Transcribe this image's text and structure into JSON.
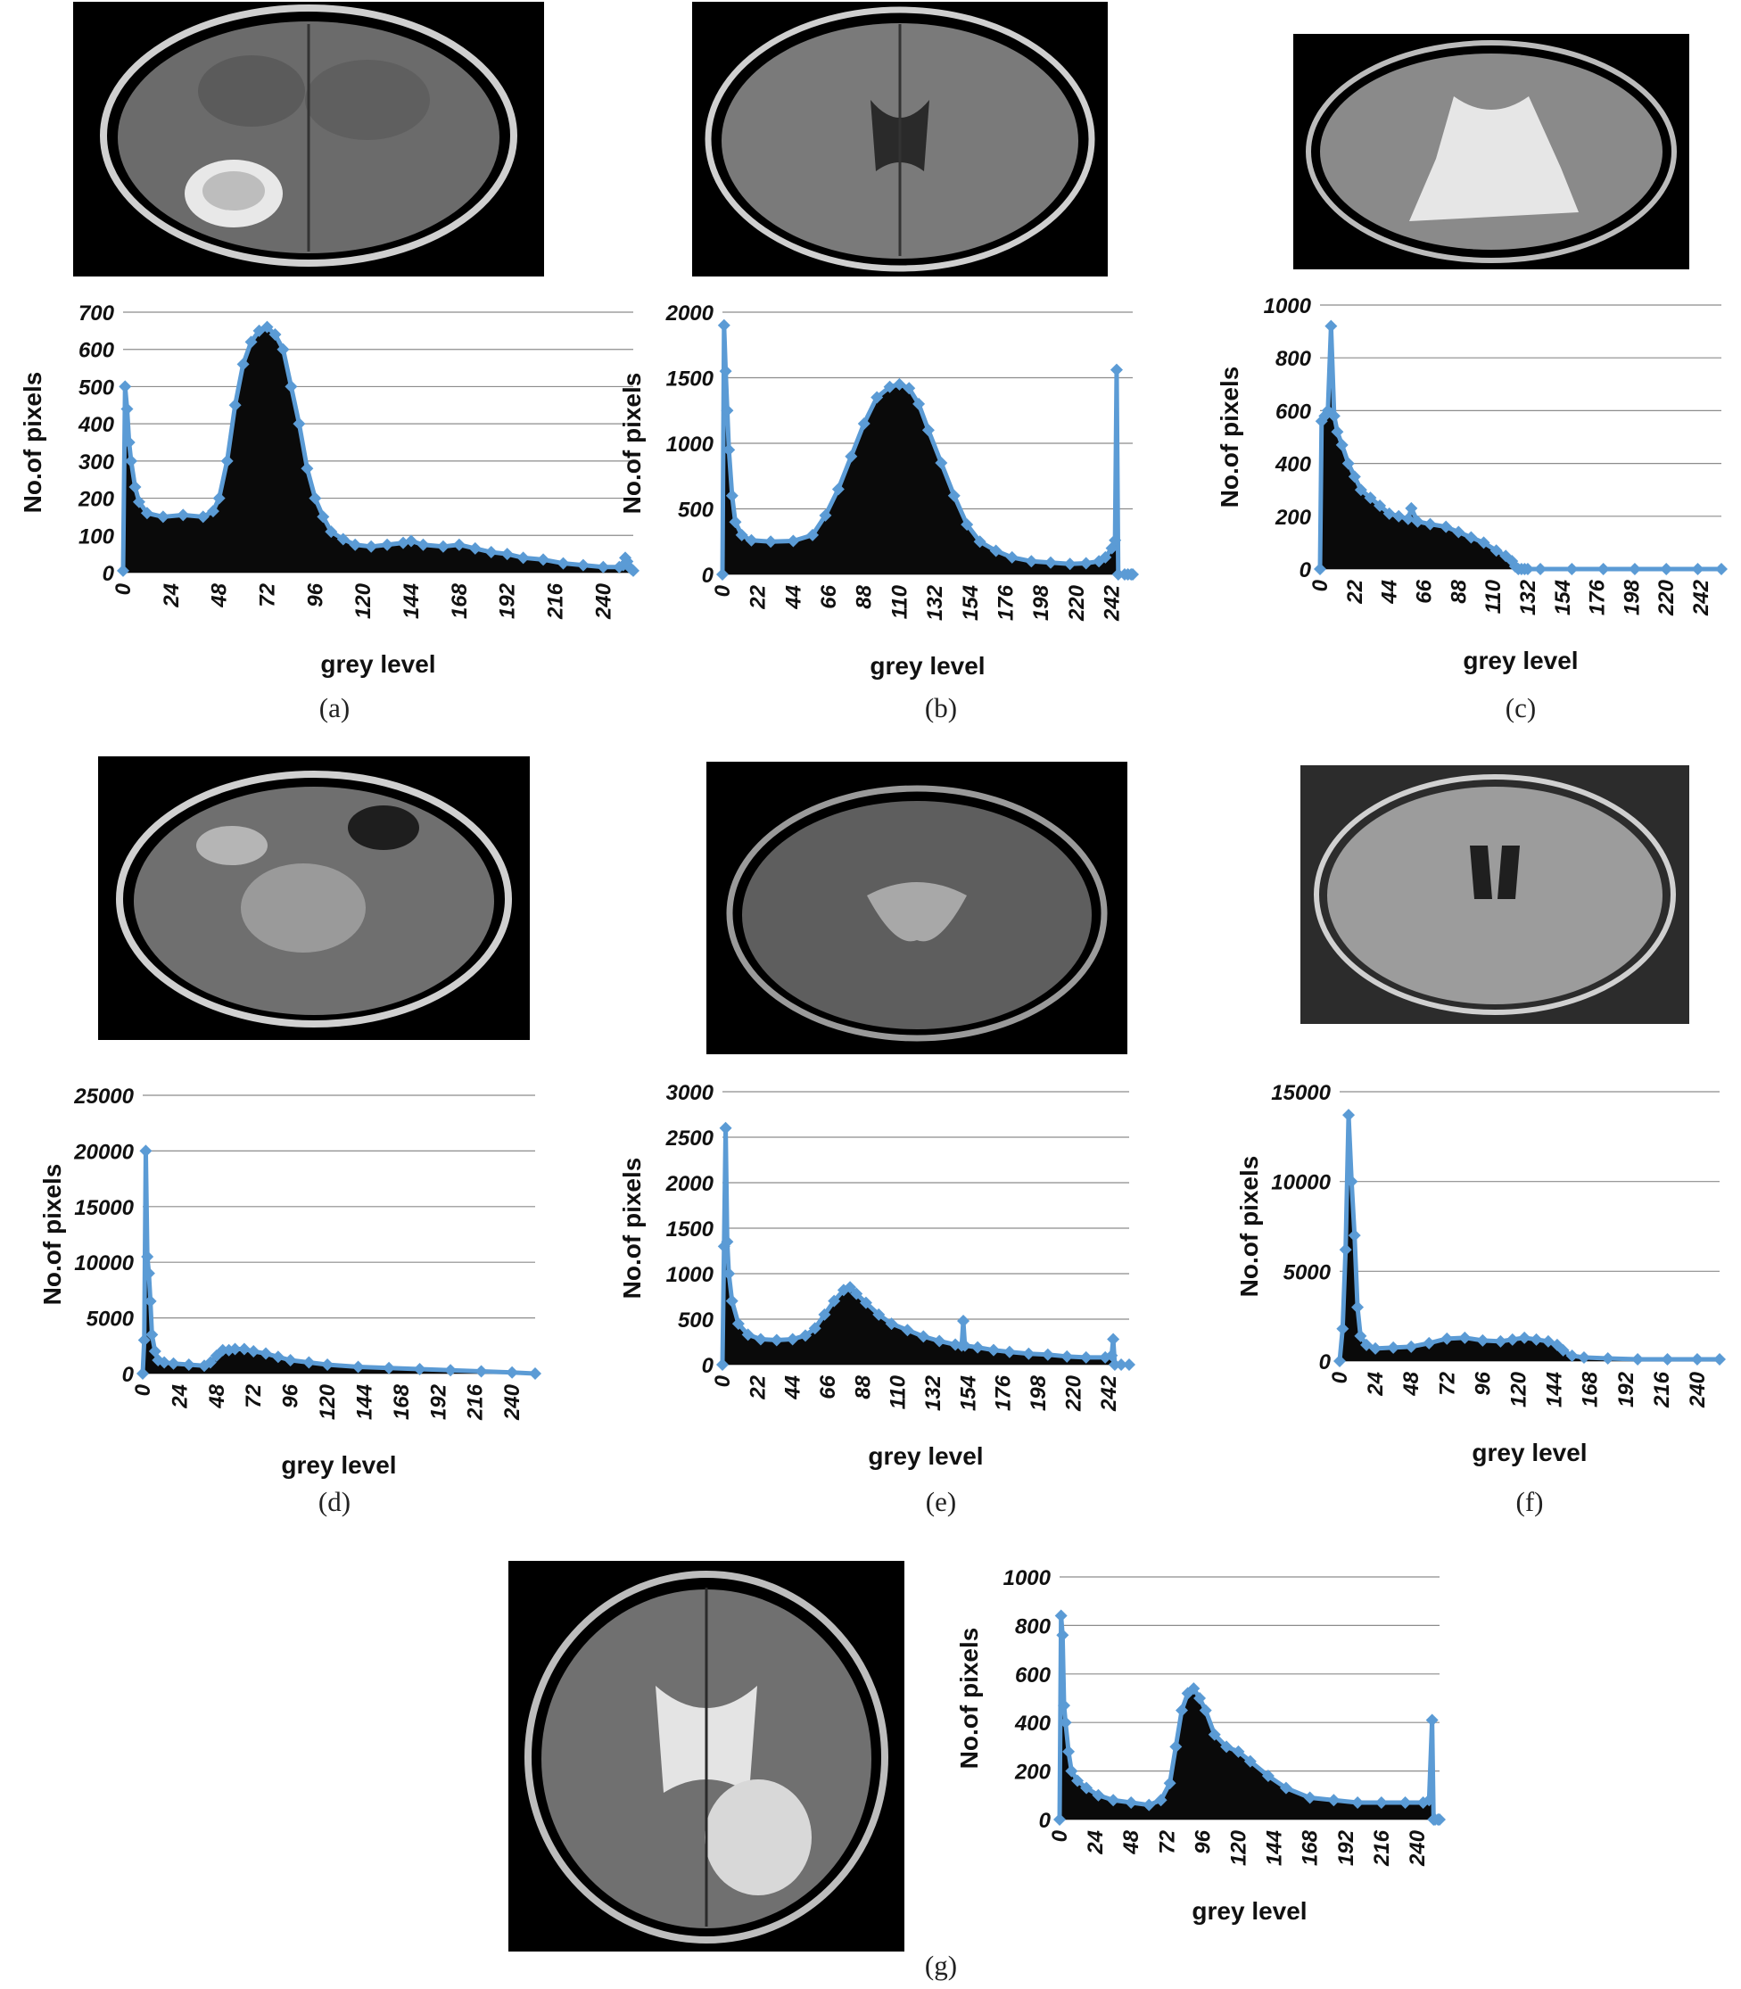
{
  "marker_color": "#5b9bd5",
  "chart_data": [
    {
      "id": "a",
      "caption": "(a)",
      "type": "area",
      "title": "",
      "xlabel": "grey level",
      "ylabel": "No.of pixels",
      "ylim": [
        0,
        700
      ],
      "yticks": [
        0,
        100,
        200,
        300,
        400,
        500,
        600,
        700
      ],
      "xlim": [
        0,
        255
      ],
      "xticks": [
        0,
        24,
        48,
        72,
        96,
        120,
        144,
        168,
        192,
        216,
        240
      ],
      "grid": true,
      "series_color": "#5b9bd5",
      "x": [
        0,
        1,
        2,
        3,
        4,
        6,
        8,
        12,
        20,
        30,
        40,
        45,
        48,
        52,
        56,
        60,
        64,
        68,
        72,
        76,
        80,
        84,
        88,
        92,
        96,
        100,
        104,
        110,
        116,
        124,
        132,
        140,
        144,
        150,
        160,
        168,
        176,
        184,
        192,
        200,
        210,
        220,
        230,
        240,
        248,
        250,
        251,
        252,
        253,
        254,
        255
      ],
      "values": [
        5,
        500,
        440,
        350,
        300,
        230,
        190,
        160,
        150,
        155,
        150,
        165,
        200,
        300,
        450,
        560,
        620,
        650,
        660,
        640,
        600,
        500,
        400,
        280,
        200,
        150,
        110,
        90,
        75,
        70,
        75,
        80,
        85,
        75,
        70,
        75,
        65,
        55,
        50,
        40,
        35,
        25,
        20,
        15,
        15,
        20,
        40,
        30,
        15,
        10,
        5
      ]
    },
    {
      "id": "b",
      "caption": "(b)",
      "type": "area",
      "title": "",
      "xlabel": "grey level",
      "ylabel": "No.of pixels",
      "ylim": [
        0,
        2000
      ],
      "yticks": [
        0,
        500,
        1000,
        1500,
        2000
      ],
      "xlim": [
        0,
        255
      ],
      "xticks": [
        0,
        22,
        44,
        66,
        88,
        110,
        132,
        154,
        176,
        198,
        220,
        242
      ],
      "grid": true,
      "series_color": "#5b9bd5",
      "x": [
        0,
        1,
        2,
        3,
        4,
        6,
        8,
        12,
        18,
        30,
        44,
        56,
        64,
        72,
        80,
        88,
        96,
        104,
        110,
        116,
        122,
        128,
        136,
        144,
        152,
        160,
        170,
        180,
        192,
        204,
        216,
        226,
        234,
        238,
        242,
        244,
        245,
        246,
        250,
        252,
        254,
        255
      ],
      "values": [
        0,
        1900,
        1550,
        1250,
        950,
        600,
        400,
        300,
        260,
        250,
        255,
        300,
        450,
        650,
        900,
        1150,
        1350,
        1430,
        1450,
        1420,
        1300,
        1100,
        850,
        600,
        380,
        250,
        180,
        130,
        100,
        90,
        80,
        85,
        100,
        130,
        200,
        260,
        1560,
        0,
        0,
        0,
        0,
        0
      ]
    },
    {
      "id": "c",
      "caption": "(c)",
      "type": "area",
      "title": "",
      "xlabel": "grey level",
      "ylabel": "No.of pixels",
      "ylim": [
        0,
        1000
      ],
      "yticks": [
        0,
        200,
        400,
        600,
        800,
        1000
      ],
      "xlim": [
        0,
        255
      ],
      "xticks": [
        0,
        22,
        44,
        66,
        88,
        110,
        132,
        154,
        176,
        198,
        220,
        242
      ],
      "grid": true,
      "series_color": "#5b9bd5",
      "x": [
        0,
        1,
        3,
        5,
        7,
        9,
        11,
        14,
        18,
        22,
        26,
        32,
        38,
        44,
        50,
        56,
        58,
        62,
        70,
        80,
        88,
        96,
        104,
        112,
        118,
        122,
        124,
        126,
        128,
        130,
        132,
        140,
        160,
        180,
        200,
        220,
        240,
        255
      ],
      "values": [
        0,
        560,
        580,
        600,
        920,
        580,
        520,
        470,
        400,
        350,
        300,
        270,
        240,
        210,
        200,
        190,
        230,
        180,
        170,
        160,
        140,
        120,
        100,
        70,
        50,
        30,
        10,
        0,
        0,
        0,
        0,
        0,
        0,
        0,
        0,
        0,
        0,
        0
      ]
    },
    {
      "id": "d",
      "caption": "(d)",
      "type": "area",
      "title": "",
      "xlabel": "grey level",
      "ylabel": "No.of pixels",
      "ylim": [
        0,
        25000
      ],
      "yticks": [
        0,
        5000,
        10000,
        15000,
        20000,
        25000
      ],
      "xlim": [
        0,
        255
      ],
      "xticks": [
        0,
        24,
        48,
        72,
        96,
        120,
        144,
        168,
        192,
        216,
        240
      ],
      "grid": true,
      "series_color": "#5b9bd5",
      "x": [
        0,
        1,
        2,
        3,
        4,
        5,
        6,
        8,
        10,
        14,
        20,
        30,
        40,
        44,
        48,
        52,
        56,
        60,
        66,
        72,
        80,
        88,
        96,
        108,
        120,
        140,
        160,
        180,
        200,
        220,
        240,
        255
      ],
      "values": [
        0,
        3000,
        20000,
        10500,
        9000,
        6500,
        3500,
        2000,
        1200,
        1000,
        900,
        800,
        700,
        1000,
        1600,
        2100,
        2100,
        2200,
        2200,
        2000,
        1800,
        1500,
        1200,
        1000,
        800,
        600,
        500,
        400,
        300,
        200,
        100,
        0
      ]
    },
    {
      "id": "e",
      "caption": "(e)",
      "type": "area",
      "title": "",
      "xlabel": "grey level",
      "ylabel": "No.of pixels",
      "ylim": [
        0,
        3000
      ],
      "yticks": [
        0,
        500,
        1000,
        1500,
        2000,
        2500,
        3000
      ],
      "xlim": [
        0,
        255
      ],
      "xticks": [
        0,
        22,
        44,
        66,
        88,
        110,
        132,
        154,
        176,
        198,
        220,
        242
      ],
      "grid": true,
      "series_color": "#5b9bd5",
      "x": [
        0,
        1,
        2,
        3,
        4,
        6,
        10,
        16,
        24,
        34,
        44,
        52,
        58,
        64,
        70,
        76,
        80,
        84,
        90,
        98,
        106,
        116,
        126,
        136,
        146,
        150,
        151,
        152,
        160,
        170,
        180,
        192,
        204,
        216,
        228,
        240,
        244,
        245,
        246,
        250,
        255
      ],
      "values": [
        0,
        1300,
        2600,
        1350,
        1000,
        700,
        450,
        330,
        280,
        270,
        280,
        320,
        400,
        550,
        700,
        820,
        850,
        780,
        680,
        550,
        450,
        380,
        310,
        260,
        220,
        210,
        480,
        210,
        190,
        160,
        140,
        120,
        110,
        90,
        80,
        80,
        100,
        280,
        0,
        0,
        0
      ]
    },
    {
      "id": "f",
      "caption": "(f)",
      "type": "area",
      "title": "",
      "xlabel": "grey level",
      "ylabel": "No.of pixels",
      "ylim": [
        0,
        15000
      ],
      "yticks": [
        0,
        5000,
        10000,
        15000
      ],
      "xlim": [
        0,
        255
      ],
      "xticks": [
        0,
        24,
        48,
        72,
        96,
        120,
        144,
        168,
        192,
        216,
        240
      ],
      "grid": true,
      "series_color": "#5b9bd5",
      "x": [
        0,
        2,
        4,
        6,
        8,
        10,
        12,
        14,
        18,
        24,
        36,
        48,
        60,
        72,
        84,
        96,
        108,
        116,
        124,
        132,
        140,
        146,
        150,
        156,
        164,
        180,
        200,
        220,
        240,
        255
      ],
      "values": [
        0,
        1800,
        6200,
        13700,
        10000,
        7000,
        3000,
        1400,
        900,
        700,
        750,
        800,
        1000,
        1250,
        1300,
        1150,
        1100,
        1200,
        1300,
        1200,
        1100,
        900,
        600,
        300,
        200,
        150,
        100,
        100,
        100,
        100
      ]
    },
    {
      "id": "g",
      "caption": "(g)",
      "type": "area",
      "title": "",
      "xlabel": "grey level",
      "ylabel": "No.of pixels",
      "ylim": [
        0,
        1000
      ],
      "yticks": [
        0,
        200,
        400,
        600,
        800,
        1000
      ],
      "xlim": [
        0,
        255
      ],
      "xticks": [
        0,
        24,
        48,
        72,
        96,
        120,
        144,
        168,
        192,
        216,
        240
      ],
      "grid": true,
      "series_color": "#5b9bd5",
      "x": [
        0,
        1,
        2,
        3,
        4,
        6,
        8,
        12,
        18,
        26,
        36,
        48,
        60,
        68,
        74,
        78,
        82,
        86,
        90,
        94,
        98,
        104,
        112,
        120,
        128,
        140,
        152,
        168,
        184,
        200,
        216,
        232,
        244,
        248,
        250,
        251,
        252,
        254,
        255
      ],
      "values": [
        0,
        840,
        760,
        470,
        400,
        280,
        200,
        160,
        130,
        100,
        80,
        70,
        60,
        80,
        150,
        300,
        450,
        520,
        540,
        500,
        450,
        350,
        300,
        280,
        240,
        180,
        130,
        90,
        80,
        70,
        70,
        70,
        70,
        80,
        410,
        0,
        0,
        0,
        0
      ]
    }
  ]
}
